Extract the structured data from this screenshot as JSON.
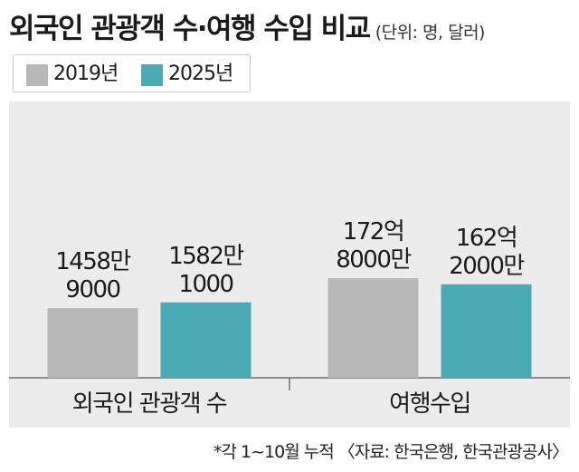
{
  "title": "외국인 관광객 수·여행 수입 비교",
  "unit": "(단위: 명, 달러)",
  "footnote": "*각 1~10월 누적 〈자료: 한국은행, 한국관광공사〉",
  "colors": {
    "series_2019": "#b7b7b7",
    "series_2025": "#4aa9b3",
    "panel": "#ececec"
  },
  "chart_data": {
    "type": "bar",
    "title": "외국인 관광객 수·여행 수입 비교",
    "legend_position": "top-left",
    "series": [
      {
        "name": "2019년",
        "color": "#b7b7b7"
      },
      {
        "name": "2025년",
        "color": "#4aa9b3"
      }
    ],
    "groups": [
      {
        "category": "외국인 관광객 수",
        "values": [
          14589000,
          15821000
        ],
        "labels": [
          [
            "1458만",
            "9000"
          ],
          [
            "1582만",
            "1000"
          ]
        ]
      },
      {
        "category": "여행수입",
        "values": [
          17280000000,
          16220000000
        ],
        "labels": [
          [
            "172억",
            "8000만"
          ],
          [
            "162억",
            "2000만"
          ]
        ]
      }
    ]
  }
}
